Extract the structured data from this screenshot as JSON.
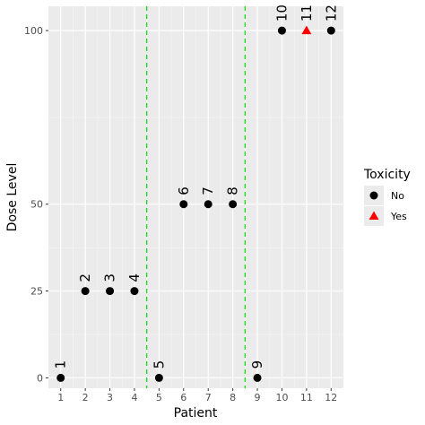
{
  "chart_data": {
    "type": "scatter",
    "xlabel": "Patient",
    "ylabel": "Dose Level",
    "x_ticks": [
      1,
      2,
      3,
      4,
      5,
      6,
      7,
      8,
      9,
      10,
      11,
      12
    ],
    "y_ticks": [
      0,
      25,
      50,
      100
    ],
    "xlim": [
      0.5,
      12.5
    ],
    "ylim": [
      -3,
      107
    ],
    "grid": true,
    "legend_placement": "right",
    "legend": {
      "title": "Toxicity",
      "entries": [
        {
          "label": "No",
          "shape": "circle",
          "color": "#000000"
        },
        {
          "label": "Yes",
          "shape": "triangle",
          "color": "#ff0000"
        }
      ]
    },
    "cohort_separators_x": [
      4.5,
      8.5
    ],
    "separator_color": "#00dd00",
    "points": [
      {
        "x": 1,
        "y": 0,
        "label": "1",
        "toxicity": "No"
      },
      {
        "x": 2,
        "y": 25,
        "label": "2",
        "toxicity": "No"
      },
      {
        "x": 3,
        "y": 25,
        "label": "3",
        "toxicity": "No"
      },
      {
        "x": 4,
        "y": 25,
        "label": "4",
        "toxicity": "No"
      },
      {
        "x": 5,
        "y": 0,
        "label": "5",
        "toxicity": "No"
      },
      {
        "x": 6,
        "y": 50,
        "label": "6",
        "toxicity": "No"
      },
      {
        "x": 7,
        "y": 50,
        "label": "7",
        "toxicity": "No"
      },
      {
        "x": 8,
        "y": 50,
        "label": "8",
        "toxicity": "No"
      },
      {
        "x": 9,
        "y": 0,
        "label": "9",
        "toxicity": "No"
      },
      {
        "x": 10,
        "y": 100,
        "label": "10",
        "toxicity": "No"
      },
      {
        "x": 11,
        "y": 100,
        "label": "11",
        "toxicity": "Yes"
      },
      {
        "x": 12,
        "y": 100,
        "label": "12",
        "toxicity": "No"
      }
    ]
  }
}
